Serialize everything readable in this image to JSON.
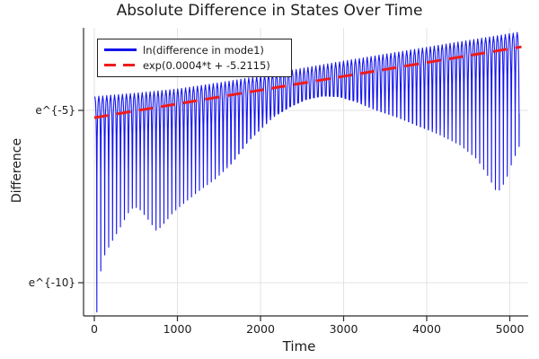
{
  "title": "Absolute Difference in States Over Time",
  "chart_data": {
    "type": "line",
    "title": "Absolute Difference in States Over Time",
    "xlabel": "Time",
    "ylabel": "Difference",
    "y_scale": "log-e",
    "grid": true,
    "legend_position": "top-left",
    "x_ticks": [
      {
        "label": "0",
        "t": 0
      },
      {
        "label": "1000",
        "t": 1000
      },
      {
        "label": "2000",
        "t": 2000
      },
      {
        "label": "3000",
        "t": 3000
      },
      {
        "label": "4000",
        "t": 4000
      },
      {
        "label": "5000",
        "t": 5000
      }
    ],
    "y_ticks": [
      {
        "label": "e^{-5}",
        "ln": -5
      },
      {
        "label": "e^{-10}",
        "ln": -10
      }
    ],
    "xlim": [
      -130,
      5225
    ],
    "ylim_ln": [
      -10.96,
      -2.6
    ],
    "colors": {
      "series_blue": "#1414ec",
      "fit_red": "#ee1c1c",
      "grid": "#e3e3e3",
      "spine": "#2b2b2b",
      "text": "#1c1c1c"
    },
    "series": [
      {
        "name": "ln(difference in mode1)",
        "style": "solid",
        "color": "#1414ec",
        "t_range": [
          0,
          5115
        ],
        "oscillation_period": 47.5,
        "first_zero_t": 30,
        "upper_envelope_ln": [
          [
            0,
            -4.6
          ],
          [
            500,
            -4.5
          ],
          [
            1000,
            -4.38
          ],
          [
            1500,
            -4.2
          ],
          [
            2000,
            -4.0
          ],
          [
            2500,
            -3.78
          ],
          [
            3000,
            -3.57
          ],
          [
            3500,
            -3.37
          ],
          [
            4000,
            -3.17
          ],
          [
            4500,
            -2.97
          ],
          [
            5140,
            -2.72
          ]
        ],
        "lower_envelope_ln": [
          [
            0,
            -10.9
          ],
          [
            30,
            -10.85
          ],
          [
            80,
            -9.6
          ],
          [
            130,
            -9.15
          ],
          [
            200,
            -8.85
          ],
          [
            300,
            -8.45
          ],
          [
            400,
            -8.0
          ],
          [
            480,
            -7.78
          ],
          [
            560,
            -7.9
          ],
          [
            660,
            -8.2
          ],
          [
            750,
            -8.5
          ],
          [
            850,
            -8.25
          ],
          [
            950,
            -7.95
          ],
          [
            1050,
            -7.75
          ],
          [
            1250,
            -7.35
          ],
          [
            1450,
            -7.0
          ],
          [
            1650,
            -6.55
          ],
          [
            1850,
            -5.9
          ],
          [
            2000,
            -5.55
          ],
          [
            2150,
            -5.2
          ],
          [
            2350,
            -4.9
          ],
          [
            2550,
            -4.68
          ],
          [
            2750,
            -4.58
          ],
          [
            2950,
            -4.6
          ],
          [
            3150,
            -4.75
          ],
          [
            3400,
            -5.0
          ],
          [
            3650,
            -5.2
          ],
          [
            3900,
            -5.45
          ],
          [
            4150,
            -5.7
          ],
          [
            4400,
            -6.0
          ],
          [
            4600,
            -6.4
          ],
          [
            4750,
            -6.95
          ],
          [
            4850,
            -7.4
          ],
          [
            4950,
            -7.05
          ],
          [
            5030,
            -6.5
          ],
          [
            5140,
            -5.9
          ]
        ]
      },
      {
        "name": "exp(0.0004*t + -5.2115)",
        "style": "dashed",
        "color": "#ee1c1c",
        "slope": 0.0004,
        "intercept": -5.2115,
        "t_range": [
          0,
          5140
        ]
      }
    ]
  },
  "legend": {
    "entries": [
      {
        "label": "ln(difference in mode1)"
      },
      {
        "label": "exp(0.0004*t + -5.2115)"
      }
    ]
  }
}
